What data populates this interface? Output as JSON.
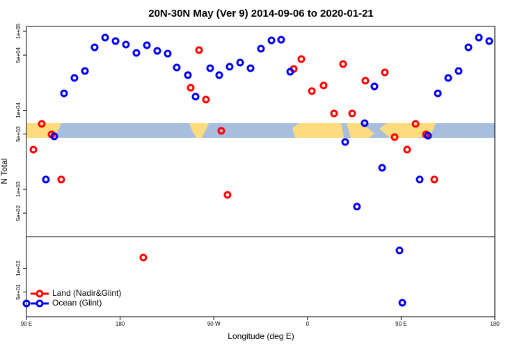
{
  "chart_data": {
    "type": "scatter",
    "title": "20N-30N May (Ver 9)   2014-09-06 to 2020-01-21",
    "x_label": "Longitude (deg E)",
    "y_label": "N Total",
    "log_y": true,
    "legend": "bottom-left",
    "xlim": [
      90,
      540
    ],
    "ylim": [
      24.4,
      115300
    ],
    "xticks": [
      {
        "value": 90,
        "label": "90 E"
      },
      {
        "value": 180,
        "label": "180"
      },
      {
        "value": 270,
        "label": "90 W"
      },
      {
        "value": 360,
        "label": "0"
      },
      {
        "value": 450,
        "label": "90 E"
      },
      {
        "value": 540,
        "label": "180"
      }
    ],
    "yticks": [
      {
        "value": 100000,
        "label": "1e+05"
      },
      {
        "value": 50000,
        "label": "5e+04"
      },
      {
        "value": 10000,
        "label": "1e+04"
      },
      {
        "value": 5000,
        "label": "5e+03"
      },
      {
        "value": 1000,
        "label": "1e+03"
      },
      {
        "value": 500,
        "label": "5e+02"
      },
      {
        "value": 100,
        "label": "1e+02"
      },
      {
        "value": 50,
        "label": "5e+01"
      }
    ],
    "series": [
      {
        "name": "Land (Nadir&Glint)",
        "color": "#ff0000",
        "x": [
          96.7,
          104.7,
          114.1,
          123.4,
          202.3,
          247.8,
          255.8,
          262.5,
          277.2,
          283.2,
          346.8,
          354.1,
          364.2,
          375.5,
          385.5,
          394.2,
          402.9,
          415.6,
          424.3,
          434.3,
          443.7,
          455.7,
          463.8,
          473.8,
          481.8
        ],
        "values": [
          3180,
          6730,
          4960,
          1330,
          137,
          19300,
          57800,
          13700,
          5500,
          851,
          33400,
          44500,
          17500,
          20600,
          9120,
          38500,
          9120,
          23700,
          20100,
          30200,
          4580,
          3180,
          6730,
          4960,
          1330
        ]
      },
      {
        "name": "Ocean (Glint)",
        "color": "#0000ee",
        "x": [
          90,
          108.7,
          116.7,
          126.1,
          136.1,
          146.2,
          155.5,
          165.6,
          175.6,
          185.6,
          195.6,
          205.7,
          215.7,
          225.7,
          234.4,
          245.1,
          252.5,
          266.5,
          275.2,
          285.2,
          295.3,
          305.3,
          315.3,
          325.4,
          334.7,
          343.4,
          396.2,
          407.5,
          414.9,
          424.3,
          431.7,
          448.4,
          451.1,
          467.8,
          475.8,
          485.2,
          495.2,
          505.2,
          514.6,
          524.6,
          534.6
        ],
        "values": [
          35.9,
          1330,
          4680,
          16400,
          25700,
          31500,
          62700,
          83300,
          75300,
          68000,
          53300,
          66700,
          56600,
          52200,
          34800,
          27900,
          14900,
          34100,
          27900,
          35600,
          40200,
          34100,
          60300,
          76800,
          78300,
          30800,
          3970,
          603,
          6870,
          20100,
          1870,
          168,
          36.6,
          1330,
          4770,
          16400,
          25700,
          31500,
          62700,
          83300,
          75300
        ]
      }
    ]
  }
}
